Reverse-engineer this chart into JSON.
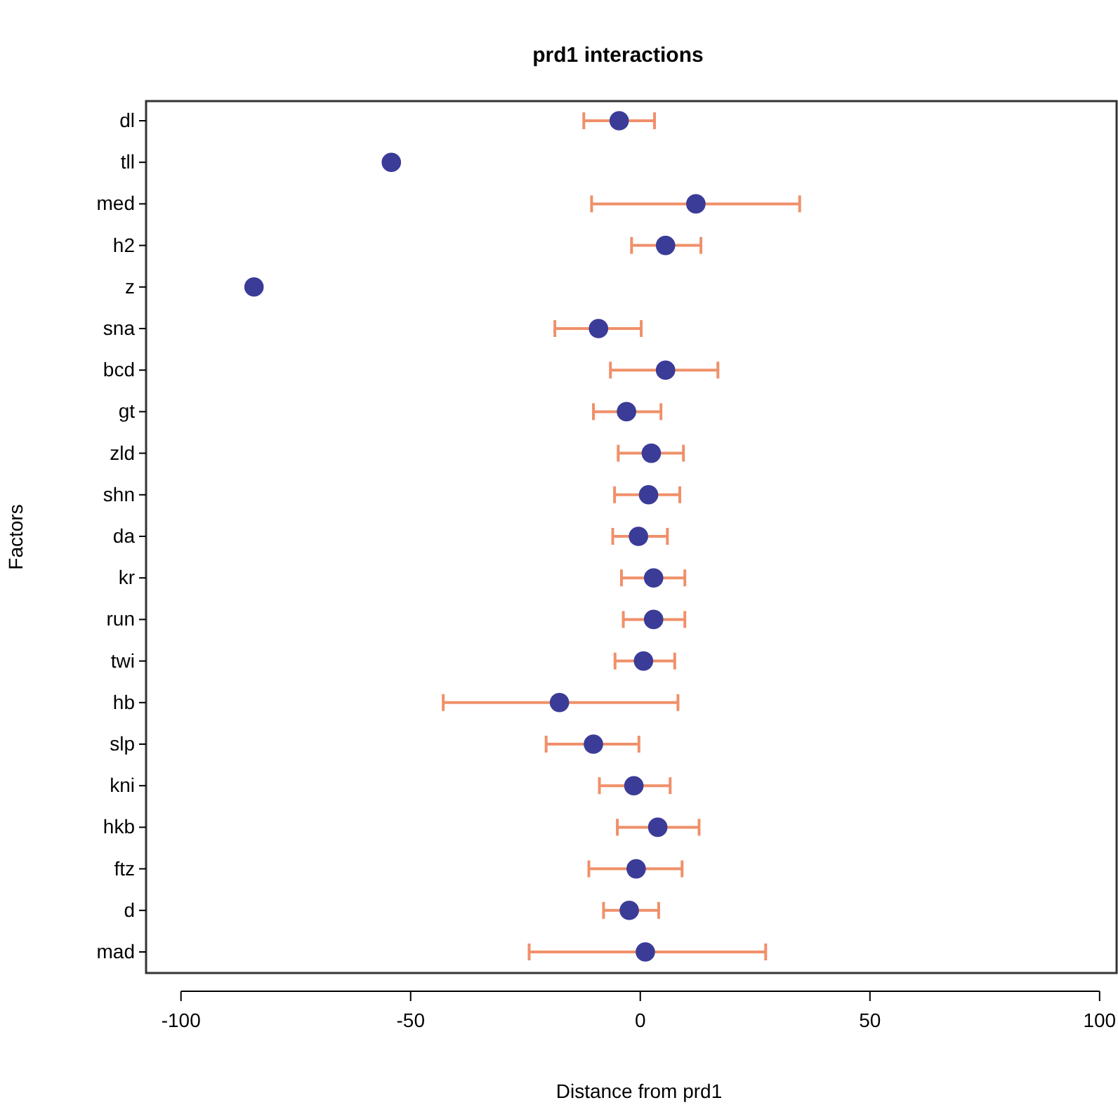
{
  "chart_data": {
    "type": "scatter",
    "orientation": "horizontal",
    "title": "prd1 interactions",
    "xlabel": "Distance from prd1",
    "ylabel": "Factors",
    "categories": [
      "dl",
      "tll",
      "med",
      "h2",
      "z",
      "sna",
      "bcd",
      "gt",
      "zld",
      "shn",
      "da",
      "kr",
      "run",
      "twi",
      "hb",
      "slp",
      "kni",
      "hkb",
      "ftz",
      "d",
      "mad"
    ],
    "series": [
      {
        "color": "#3b3b98",
        "values": [
          -4.6,
          -54.2,
          12.1,
          5.5,
          -84.1,
          -9.1,
          5.5,
          -3.0,
          2.4,
          1.8,
          -0.4,
          2.9,
          2.9,
          0.7,
          -17.6,
          -10.2,
          -1.4,
          3.8,
          -0.9,
          -2.4,
          1.1
        ],
        "errors": [
          [
            -12.3,
            3.1
          ],
          null,
          [
            -10.6,
            34.7
          ],
          [
            -1.9,
            13.2
          ],
          null,
          [
            -18.6,
            0.2
          ],
          [
            -6.5,
            16.9
          ],
          [
            -10.2,
            4.5
          ],
          [
            -4.8,
            9.4
          ],
          [
            -5.6,
            8.6
          ],
          [
            -6.0,
            5.9
          ],
          [
            -4.1,
            9.7
          ],
          [
            -3.7,
            9.7
          ],
          [
            -5.5,
            7.5
          ],
          [
            -42.9,
            8.2
          ],
          [
            -20.5,
            -0.3
          ],
          [
            -8.9,
            6.5
          ],
          [
            -5.0,
            12.8
          ],
          [
            -11.2,
            9.1
          ],
          [
            -8.0,
            4.0
          ],
          [
            -24.2,
            27.3
          ]
        ]
      }
    ],
    "xlim": [
      -107.6,
      103.7
    ],
    "xticks": [
      -100,
      -50,
      0,
      50,
      100
    ],
    "marker": "circle",
    "grid": false
  }
}
